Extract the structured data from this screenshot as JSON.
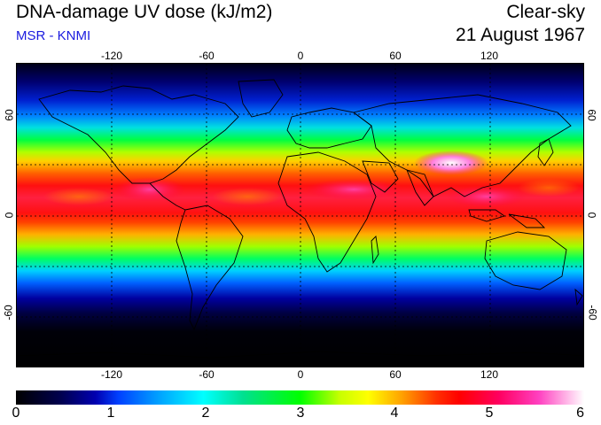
{
  "header": {
    "title": "DNA-damage UV dose (kJ/m2)",
    "source": "MSR - KNMI",
    "sky_condition": "Clear-sky",
    "date": "21 August 1967"
  },
  "map": {
    "projection": "equirectangular",
    "lon_range": [
      -180,
      180
    ],
    "lat_range": [
      -90,
      90
    ],
    "gridlines": "dashed",
    "lon_ticks": [
      "-120",
      "-60",
      "0",
      "60",
      "120"
    ],
    "lat_ticks": [
      "60",
      "0",
      "-60"
    ]
  },
  "colorbar": {
    "labels": [
      "0",
      "1",
      "2",
      "3",
      "4",
      "5",
      "6"
    ],
    "range": [
      0,
      6
    ],
    "colors": [
      "#000000",
      "#0000b0",
      "#00ffff",
      "#00ff00",
      "#ffff00",
      "#ff0000",
      "#ff40c0",
      "#ffffff"
    ]
  }
}
